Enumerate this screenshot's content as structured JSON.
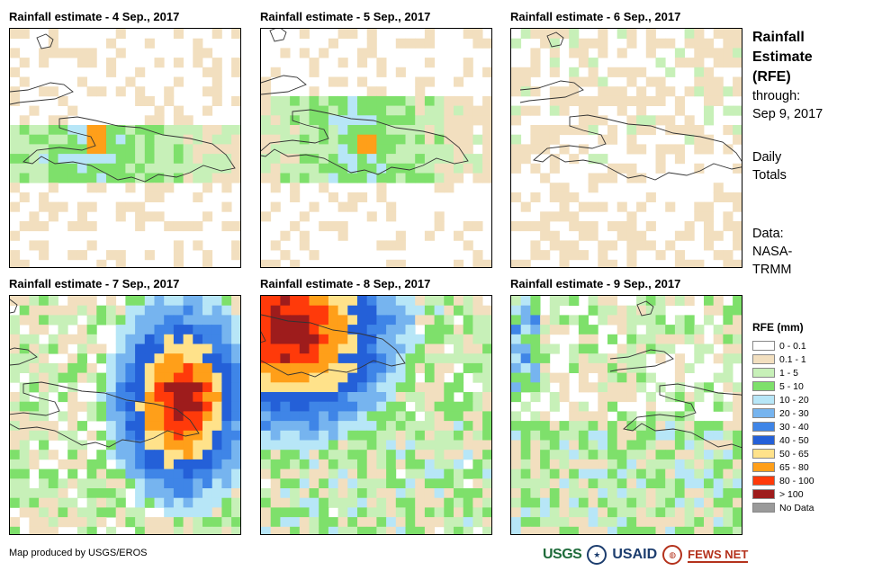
{
  "panels": [
    {
      "title": "Rainfall estimate - 4 Sep., 2017"
    },
    {
      "title": "Rainfall estimate - 5 Sep., 2017"
    },
    {
      "title": "Rainfall estimate - 6 Sep., 2017"
    },
    {
      "title": "Rainfall estimate - 7 Sep., 2017"
    },
    {
      "title": "Rainfall estimate - 8 Sep., 2017"
    },
    {
      "title": "Rainfall estimate - 9 Sep., 2017"
    }
  ],
  "side": {
    "title_lines": [
      "Rainfall",
      "Estimate",
      "(RFE)"
    ],
    "through_label": "through:",
    "through_date": "Sep 9, 2017",
    "totals_lines": [
      "Daily",
      "Totals"
    ],
    "data_lines": [
      "Data:",
      "NASA-",
      "TRMM"
    ]
  },
  "legend": {
    "title": "RFE (mm)",
    "items": [
      {
        "label": "0 - 0.1",
        "color": "#ffffff"
      },
      {
        "label": "0.1 - 1",
        "color": "#f2dfbf"
      },
      {
        "label": "1 - 5",
        "color": "#c7f0b8"
      },
      {
        "label": "5 - 10",
        "color": "#7ee06b"
      },
      {
        "label": "10 - 20",
        "color": "#b7e6f7"
      },
      {
        "label": "20 - 30",
        "color": "#76b4ef"
      },
      {
        "label": "30 - 40",
        "color": "#3f85e7"
      },
      {
        "label": "40 - 50",
        "color": "#2460d8"
      },
      {
        "label": "50 - 65",
        "color": "#ffe28a"
      },
      {
        "label": "65 - 80",
        "color": "#ff9f19"
      },
      {
        "label": "80 - 100",
        "color": "#ff3a0a"
      },
      {
        "label": "> 100",
        "color": "#9e1c1c"
      },
      {
        "label": "No Data",
        "color": "#9a9a9a"
      }
    ]
  },
  "credit": "Map produced by USGS/EROS",
  "logos": {
    "usgs": "USGS",
    "usaid": "USAID",
    "fews": "FEWS NET"
  }
}
